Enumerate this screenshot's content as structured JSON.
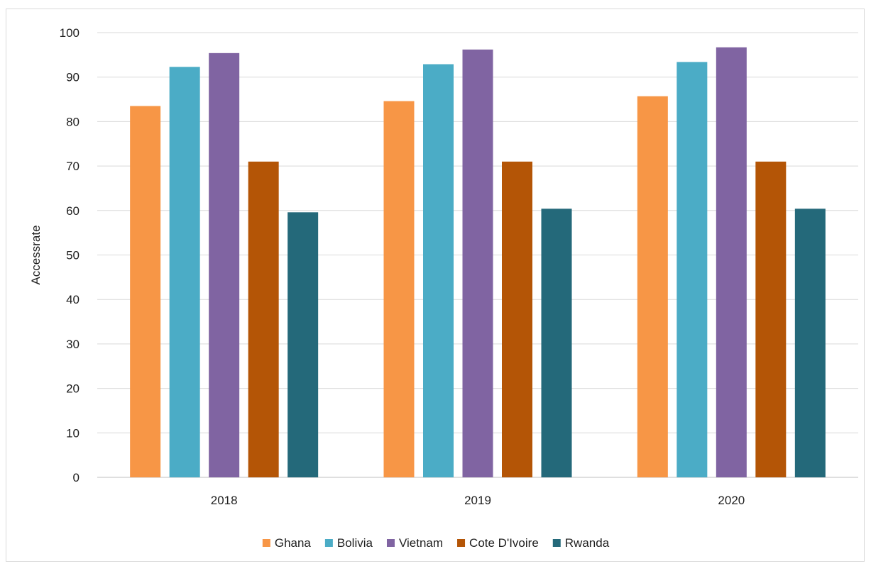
{
  "chart_data": {
    "type": "bar",
    "title": "",
    "xlabel": "",
    "ylabel": "Accessrate",
    "categories": [
      "2018",
      "2019",
      "2020"
    ],
    "ylim": [
      0,
      100
    ],
    "yticks": [
      0,
      10,
      20,
      30,
      40,
      50,
      60,
      70,
      80,
      90,
      100
    ],
    "grid": true,
    "legend_position": "bottom",
    "series": [
      {
        "name": "Ghana",
        "color": "#f79646",
        "values": [
          83.5,
          84.6,
          85.7
        ]
      },
      {
        "name": "Bolivia",
        "color": "#4bacc6",
        "values": [
          92.3,
          92.9,
          93.4
        ]
      },
      {
        "name": "Vietnam",
        "color": "#8064a2",
        "values": [
          95.4,
          96.2,
          96.7
        ]
      },
      {
        "name": "Cote D'Ivoire",
        "color": "#b45506",
        "values": [
          71.0,
          71.0,
          71.0
        ]
      },
      {
        "name": "Rwanda",
        "color": "#24697a",
        "values": [
          59.6,
          60.4,
          60.4
        ]
      }
    ]
  }
}
